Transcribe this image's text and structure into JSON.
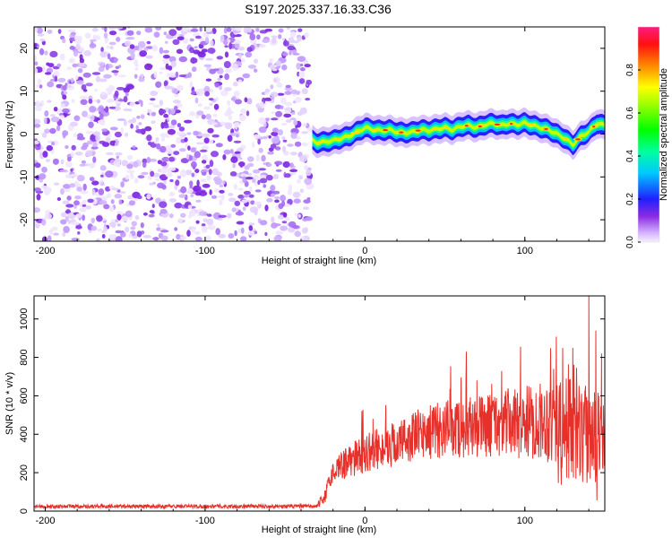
{
  "title": "S197.2025.337.16.33.C36",
  "chart_data": [
    {
      "type": "heatmap",
      "name": "spectrogram",
      "xlabel": "Height of straight line (km)",
      "ylabel": "Frequency (Hz)",
      "xlim": [
        -207,
        150
      ],
      "ylim": [
        -25,
        25
      ],
      "xticks": [
        -200,
        -100,
        0,
        100
      ],
      "yticks": [
        -20,
        -10,
        0,
        10,
        20
      ],
      "noise_region_x": [
        -207,
        -33
      ],
      "signal_track": {
        "x": [
          -33,
          -30,
          -25,
          -20,
          -15,
          -10,
          -5,
          0,
          5,
          10,
          15,
          20,
          25,
          30,
          35,
          40,
          45,
          50,
          55,
          60,
          65,
          70,
          75,
          80,
          85,
          90,
          95,
          100,
          105,
          110,
          115,
          120,
          125,
          130,
          135,
          140,
          145,
          150
        ],
        "y": [
          -1.5,
          -2,
          -1.8,
          -1.5,
          -1.0,
          -0.5,
          0.5,
          1.5,
          1.0,
          0.8,
          1.0,
          0.5,
          0.3,
          0.5,
          1.0,
          0.8,
          1.2,
          1.5,
          1.0,
          1.8,
          2.0,
          1.5,
          2.2,
          2.5,
          2.0,
          2.5,
          2.2,
          2.6,
          2.0,
          1.5,
          1.0,
          0.0,
          -1.0,
          -2.5,
          -0.5,
          0.5,
          2.5,
          2.0
        ]
      },
      "colorbar": {
        "label": "Normalized spectral amplitude",
        "ticks": [
          0.0,
          0.2,
          0.4,
          0.6,
          0.8
        ],
        "tick_labels": [
          "0.0",
          "0.2",
          "0.4",
          "0.6",
          "0.8"
        ],
        "range": [
          0,
          1
        ]
      }
    },
    {
      "type": "line",
      "name": "snr",
      "xlabel": "Height of straight line (km)",
      "ylabel": "SNR (10 * v/v)",
      "xlim": [
        -207,
        150
      ],
      "ylim": [
        0,
        1120
      ],
      "xticks": [
        -200,
        -100,
        0,
        100
      ],
      "yticks": [
        0,
        200,
        400,
        600,
        800,
        1000
      ],
      "color": "#e8302a",
      "envelope": {
        "x": [
          -207,
          -30,
          -25,
          -20,
          -10,
          0,
          10,
          20,
          30,
          40,
          50,
          60,
          70,
          80,
          90,
          100,
          110,
          120,
          125,
          130,
          135,
          140,
          145,
          150
        ],
        "mean": [
          25,
          25,
          80,
          210,
          260,
          300,
          330,
          350,
          390,
          410,
          430,
          430,
          440,
          450,
          460,
          460,
          470,
          480,
          470,
          450,
          430,
          410,
          400,
          400
        ],
        "amplitude": [
          10,
          10,
          40,
          60,
          90,
          100,
          110,
          120,
          130,
          140,
          150,
          160,
          160,
          170,
          180,
          190,
          200,
          250,
          300,
          330,
          300,
          260,
          220,
          200
        ]
      },
      "peaks": [
        {
          "x": 5,
          "y": 480
        },
        {
          "x": 70,
          "y": 680
        },
        {
          "x": 118,
          "y": 740
        },
        {
          "x": 130,
          "y": 850
        },
        {
          "x": 140,
          "y": 1120
        },
        {
          "x": 148,
          "y": 820
        }
      ]
    }
  ]
}
